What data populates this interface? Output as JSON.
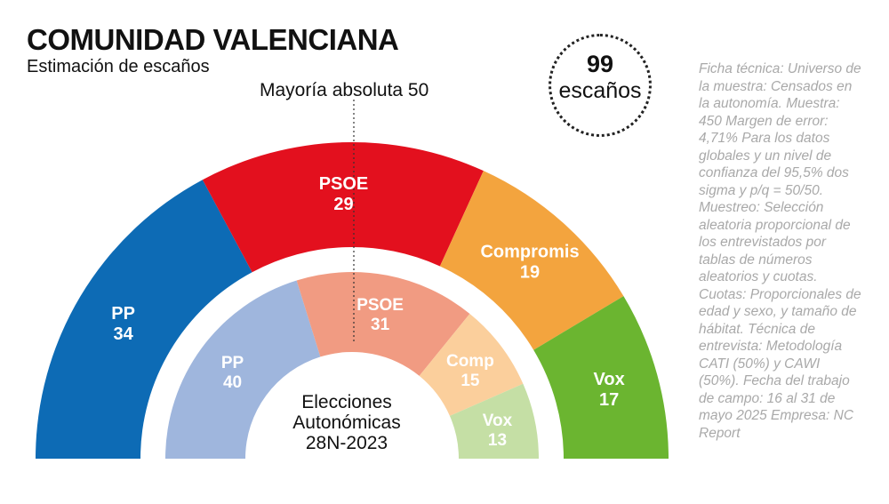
{
  "header": {
    "title": "COMUNIDAD VALENCIANA",
    "subtitle": "Estimación de escaños"
  },
  "badge": {
    "number": "99",
    "label": "escaños"
  },
  "majority_label": "Mayoría absoluta 50",
  "prev_election_label": [
    "Elecciones",
    "Autonómicas",
    "28N-2023"
  ],
  "ficha_tecnica": "Ficha técnica: Universo de la muestra: Censados en la autonomía. Muestra: 450 Margen de error: 4,71% Para los datos globales y un nivel de confianza del 95,5% dos sigma y p/q = 50/50. Muestreo: Selección aleatoria proporcional de los entrevistados por tablas de números aleatorios y cuotas. Cuotas: Proporcionales de edad y sexo, y tamaño de hábitat. Técnica de entrevista: Metodología CATI (50%) y CAWI (50%). Fecha del trabajo de campo: 16 al 31 de mayo 2025 Empresa: NC Report",
  "chart_data": [
    {
      "type": "pie",
      "variant": "semicircle",
      "total_seats": 99,
      "majority": 50,
      "series": [
        {
          "name": "PP",
          "value": 34,
          "color": "#0d6bb5"
        },
        {
          "name": "PSOE",
          "value": 29,
          "color": "#e3101e"
        },
        {
          "name": "Compromis",
          "value": 19,
          "color": "#f3a43e"
        },
        {
          "name": "Vox",
          "value": 17,
          "color": "#6bb530"
        }
      ]
    },
    {
      "type": "pie",
      "variant": "semicircle",
      "total_seats": 99,
      "series": [
        {
          "name": "PP",
          "value": 40,
          "color": "#9fb6dd"
        },
        {
          "name": "PSOE",
          "value": 31,
          "color": "#f19b82"
        },
        {
          "name": "Comp",
          "value": 15,
          "color": "#fbcf9c"
        },
        {
          "name": "Vox",
          "value": 13,
          "color": "#c5dfa5"
        }
      ]
    }
  ]
}
